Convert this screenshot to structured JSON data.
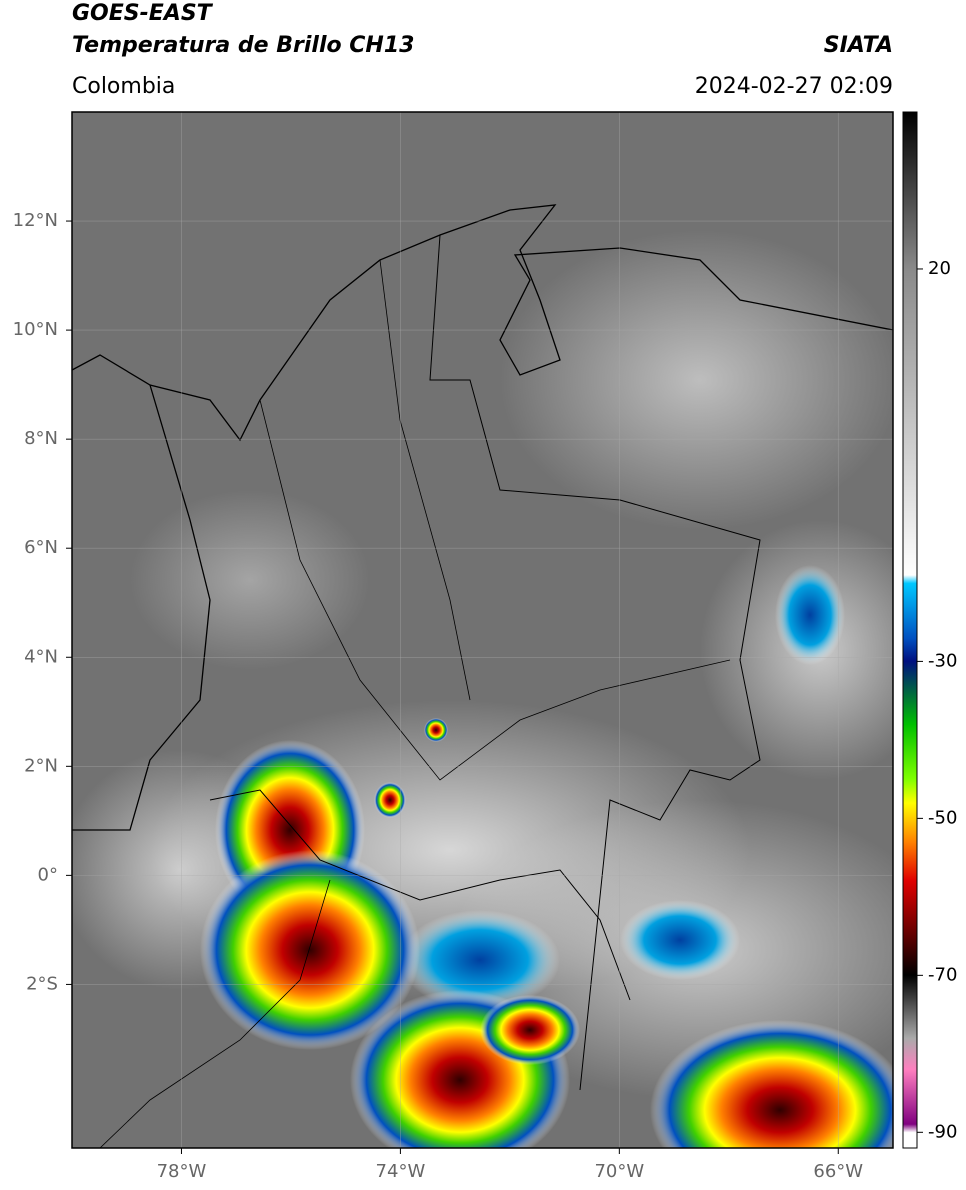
{
  "header": {
    "title_line1": "GOES-EAST",
    "title_line2": "Temperatura de Brillo CH13",
    "region": "Colombia",
    "source": "SIATA",
    "timestamp": "2024-02-27 02:09"
  },
  "map": {
    "xlim": [
      -80,
      -65
    ],
    "ylim": [
      -5,
      14
    ],
    "xticks": [
      {
        "value": -78,
        "label": "78°W"
      },
      {
        "value": -74,
        "label": "74°W"
      },
      {
        "value": -70,
        "label": "70°W"
      },
      {
        "value": -66,
        "label": "66°W"
      }
    ],
    "yticks": [
      {
        "value": 12,
        "label": "12°N"
      },
      {
        "value": 10,
        "label": "10°N"
      },
      {
        "value": 8,
        "label": "8°N"
      },
      {
        "value": 6,
        "label": "6°N"
      },
      {
        "value": 4,
        "label": "4°N"
      },
      {
        "value": 2,
        "label": "2°N"
      },
      {
        "value": 0,
        "label": "0°"
      },
      {
        "value": -2,
        "label": "2°S"
      }
    ]
  },
  "colorbar": {
    "lim": [
      -92,
      40
    ],
    "ticks": [
      20,
      -30,
      -50,
      -70,
      -90
    ]
  }
}
